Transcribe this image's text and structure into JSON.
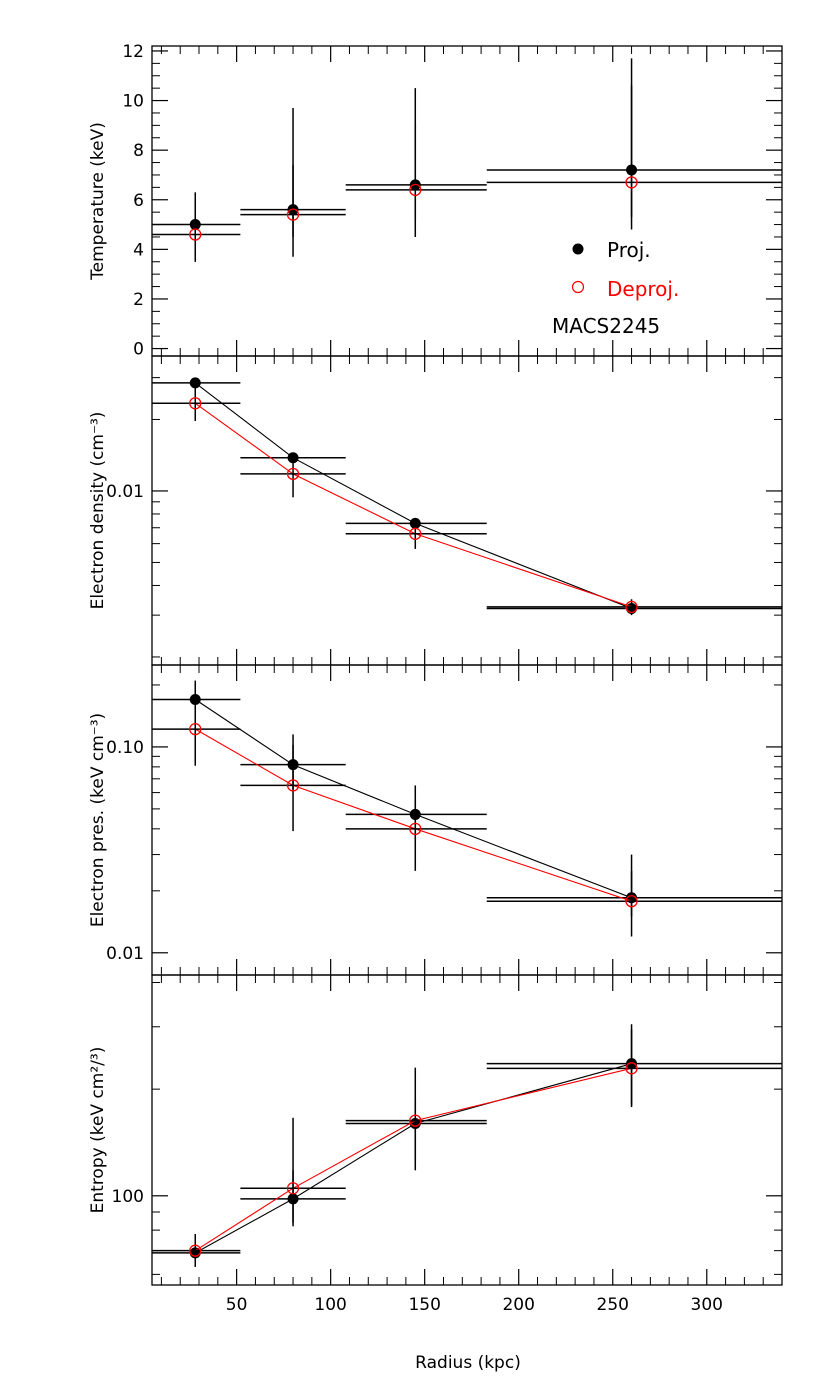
{
  "figure": {
    "xlabel": "Radius (kpc)",
    "xlim": [
      5,
      340
    ],
    "xticks": [
      50,
      100,
      150,
      200,
      250,
      300
    ],
    "colors": {
      "proj": "#000000",
      "deproj": "#ff0000",
      "axis": "#000000"
    },
    "legend": [
      {
        "label": "Proj.",
        "marker": "filled-circle",
        "color": "#000000"
      },
      {
        "label": "Deproj.",
        "marker": "open-circle",
        "color": "#ff0000"
      }
    ],
    "annotation": "MACS2245"
  },
  "chart_data": [
    {
      "type": "scatter",
      "ylabel": "Temperature (keV)",
      "yscale": "linear",
      "ylim": [
        -0.3,
        12.2
      ],
      "yticks": [
        0,
        2,
        4,
        6,
        8,
        10,
        12
      ],
      "ytick_labels": [
        "0",
        "2",
        "4",
        "6",
        "8",
        "10",
        "12"
      ],
      "connect_lines": false,
      "legend_placement": "bottom-right",
      "series": [
        {
          "name": "Proj.",
          "marker": "filled",
          "points": [
            {
              "x": 28,
              "x_lo": 5,
              "x_hi": 52,
              "y": 5.0,
              "y_lo": 3.5,
              "y_hi": 6.3
            },
            {
              "x": 80,
              "x_lo": 52,
              "x_hi": 108,
              "y": 5.6,
              "y_lo": 4.5,
              "y_hi": 7.4
            },
            {
              "x": 145,
              "x_lo": 108,
              "x_hi": 183,
              "y": 6.6,
              "y_lo": 5.2,
              "y_hi": 9.1
            },
            {
              "x": 260,
              "x_lo": 183,
              "x_hi": 340,
              "y": 7.2,
              "y_lo": 5.3,
              "y_hi": 10.6
            }
          ]
        },
        {
          "name": "Deproj.",
          "marker": "open",
          "points": [
            {
              "x": 28,
              "x_lo": 5,
              "x_hi": 52,
              "y": 4.6,
              "y_lo": 3.5,
              "y_hi": 6.1
            },
            {
              "x": 80,
              "x_lo": 52,
              "x_hi": 108,
              "y": 5.4,
              "y_lo": 3.7,
              "y_hi": 9.7
            },
            {
              "x": 145,
              "x_lo": 108,
              "x_hi": 183,
              "y": 6.4,
              "y_lo": 4.5,
              "y_hi": 10.5
            },
            {
              "x": 260,
              "x_lo": 183,
              "x_hi": 340,
              "y": 6.7,
              "y_lo": 4.8,
              "y_hi": 11.7
            }
          ]
        }
      ]
    },
    {
      "type": "scatter",
      "ylabel": "Electron density (cm⁻³)",
      "yscale": "log",
      "ylim": [
        0.00185,
        0.037
      ],
      "yticks": [
        0.01
      ],
      "ytick_labels": [
        "0.01"
      ],
      "yminor": [
        0.002,
        0.003,
        0.004,
        0.005,
        0.006,
        0.007,
        0.008,
        0.009,
        0.02,
        0.03
      ],
      "connect_lines": true,
      "series": [
        {
          "name": "Proj.",
          "marker": "filled",
          "points": [
            {
              "x": 28,
              "x_lo": 5,
              "x_hi": 52,
              "y": 0.0285,
              "y_lo": 0.0278,
              "y_hi": 0.0292
            },
            {
              "x": 80,
              "x_lo": 52,
              "x_hi": 108,
              "y": 0.0138,
              "y_lo": 0.0134,
              "y_hi": 0.0142
            },
            {
              "x": 145,
              "x_lo": 108,
              "x_hi": 183,
              "y": 0.0073,
              "y_lo": 0.007,
              "y_hi": 0.0076
            },
            {
              "x": 260,
              "x_lo": 183,
              "x_hi": 340,
              "y": 0.0032,
              "y_lo": 0.0031,
              "y_hi": 0.0033
            }
          ]
        },
        {
          "name": "Deproj.",
          "marker": "open",
          "points": [
            {
              "x": 28,
              "x_lo": 5,
              "x_hi": 52,
              "y": 0.0234,
              "y_lo": 0.0197,
              "y_hi": 0.0272
            },
            {
              "x": 80,
              "x_lo": 52,
              "x_hi": 108,
              "y": 0.0118,
              "y_lo": 0.0094,
              "y_hi": 0.0141
            },
            {
              "x": 145,
              "x_lo": 108,
              "x_hi": 183,
              "y": 0.0066,
              "y_lo": 0.0057,
              "y_hi": 0.0077
            },
            {
              "x": 260,
              "x_lo": 183,
              "x_hi": 340,
              "y": 0.00325,
              "y_lo": 0.003,
              "y_hi": 0.0035
            }
          ]
        }
      ]
    },
    {
      "type": "scatter",
      "ylabel": "Electron pres. (keV cm⁻³)",
      "yscale": "log",
      "ylim": [
        0.0078,
        0.25
      ],
      "yticks": [
        0.01,
        0.1
      ],
      "ytick_labels": [
        "0.01",
        "0.10"
      ],
      "yminor": [
        0.02,
        0.03,
        0.04,
        0.05,
        0.06,
        0.07,
        0.08,
        0.09,
        0.2
      ],
      "connect_lines": true,
      "series": [
        {
          "name": "Proj.",
          "marker": "filled",
          "points": [
            {
              "x": 28,
              "x_lo": 5,
              "x_hi": 52,
              "y": 0.17,
              "y_lo": 0.12,
              "y_hi": 0.21
            },
            {
              "x": 80,
              "x_lo": 52,
              "x_hi": 108,
              "y": 0.082,
              "y_lo": 0.062,
              "y_hi": 0.102
            },
            {
              "x": 145,
              "x_lo": 108,
              "x_hi": 183,
              "y": 0.047,
              "y_lo": 0.035,
              "y_hi": 0.065
            },
            {
              "x": 260,
              "x_lo": 183,
              "x_hi": 340,
              "y": 0.0185,
              "y_lo": 0.015,
              "y_hi": 0.03
            }
          ]
        },
        {
          "name": "Deproj.",
          "marker": "open",
          "points": [
            {
              "x": 28,
              "x_lo": 5,
              "x_hi": 52,
              "y": 0.122,
              "y_lo": 0.081,
              "y_hi": 0.17
            },
            {
              "x": 80,
              "x_lo": 52,
              "x_hi": 108,
              "y": 0.065,
              "y_lo": 0.039,
              "y_hi": 0.115
            },
            {
              "x": 145,
              "x_lo": 108,
              "x_hi": 183,
              "y": 0.04,
              "y_lo": 0.025,
              "y_hi": 0.055
            },
            {
              "x": 260,
              "x_lo": 183,
              "x_hi": 340,
              "y": 0.0178,
              "y_lo": 0.012,
              "y_hi": 0.025
            }
          ]
        }
      ]
    },
    {
      "type": "scatter",
      "ylabel": "Entropy (keV cm²/³)",
      "yscale": "log",
      "ylim": [
        56,
        420
      ],
      "yticks": [
        100
      ],
      "ytick_labels": [
        "100"
      ],
      "yminor": [
        60,
        70,
        80,
        90,
        200,
        300,
        400
      ],
      "connect_lines": true,
      "series": [
        {
          "name": "Proj.",
          "marker": "filled",
          "points": [
            {
              "x": 28,
              "x_lo": 5,
              "x_hi": 52,
              "y": 69,
              "y_lo": 63,
              "y_hi": 76
            },
            {
              "x": 80,
              "x_lo": 52,
              "x_hi": 108,
              "y": 98,
              "y_lo": 82,
              "y_hi": 118
            },
            {
              "x": 145,
              "x_lo": 108,
              "x_hi": 183,
              "y": 160,
              "y_lo": 125,
              "y_hi": 187
            },
            {
              "x": 260,
              "x_lo": 183,
              "x_hi": 340,
              "y": 236,
              "y_lo": 178,
              "y_hi": 305
            }
          ]
        },
        {
          "name": "Deproj.",
          "marker": "open",
          "points": [
            {
              "x": 28,
              "x_lo": 5,
              "x_hi": 52,
              "y": 70,
              "y_lo": 63,
              "y_hi": 78
            },
            {
              "x": 80,
              "x_lo": 52,
              "x_hi": 108,
              "y": 105,
              "y_lo": 84,
              "y_hi": 166
            },
            {
              "x": 145,
              "x_lo": 108,
              "x_hi": 183,
              "y": 163,
              "y_lo": 118,
              "y_hi": 230
            },
            {
              "x": 260,
              "x_lo": 183,
              "x_hi": 340,
              "y": 229,
              "y_lo": 180,
              "y_hi": 295
            }
          ]
        }
      ]
    }
  ]
}
